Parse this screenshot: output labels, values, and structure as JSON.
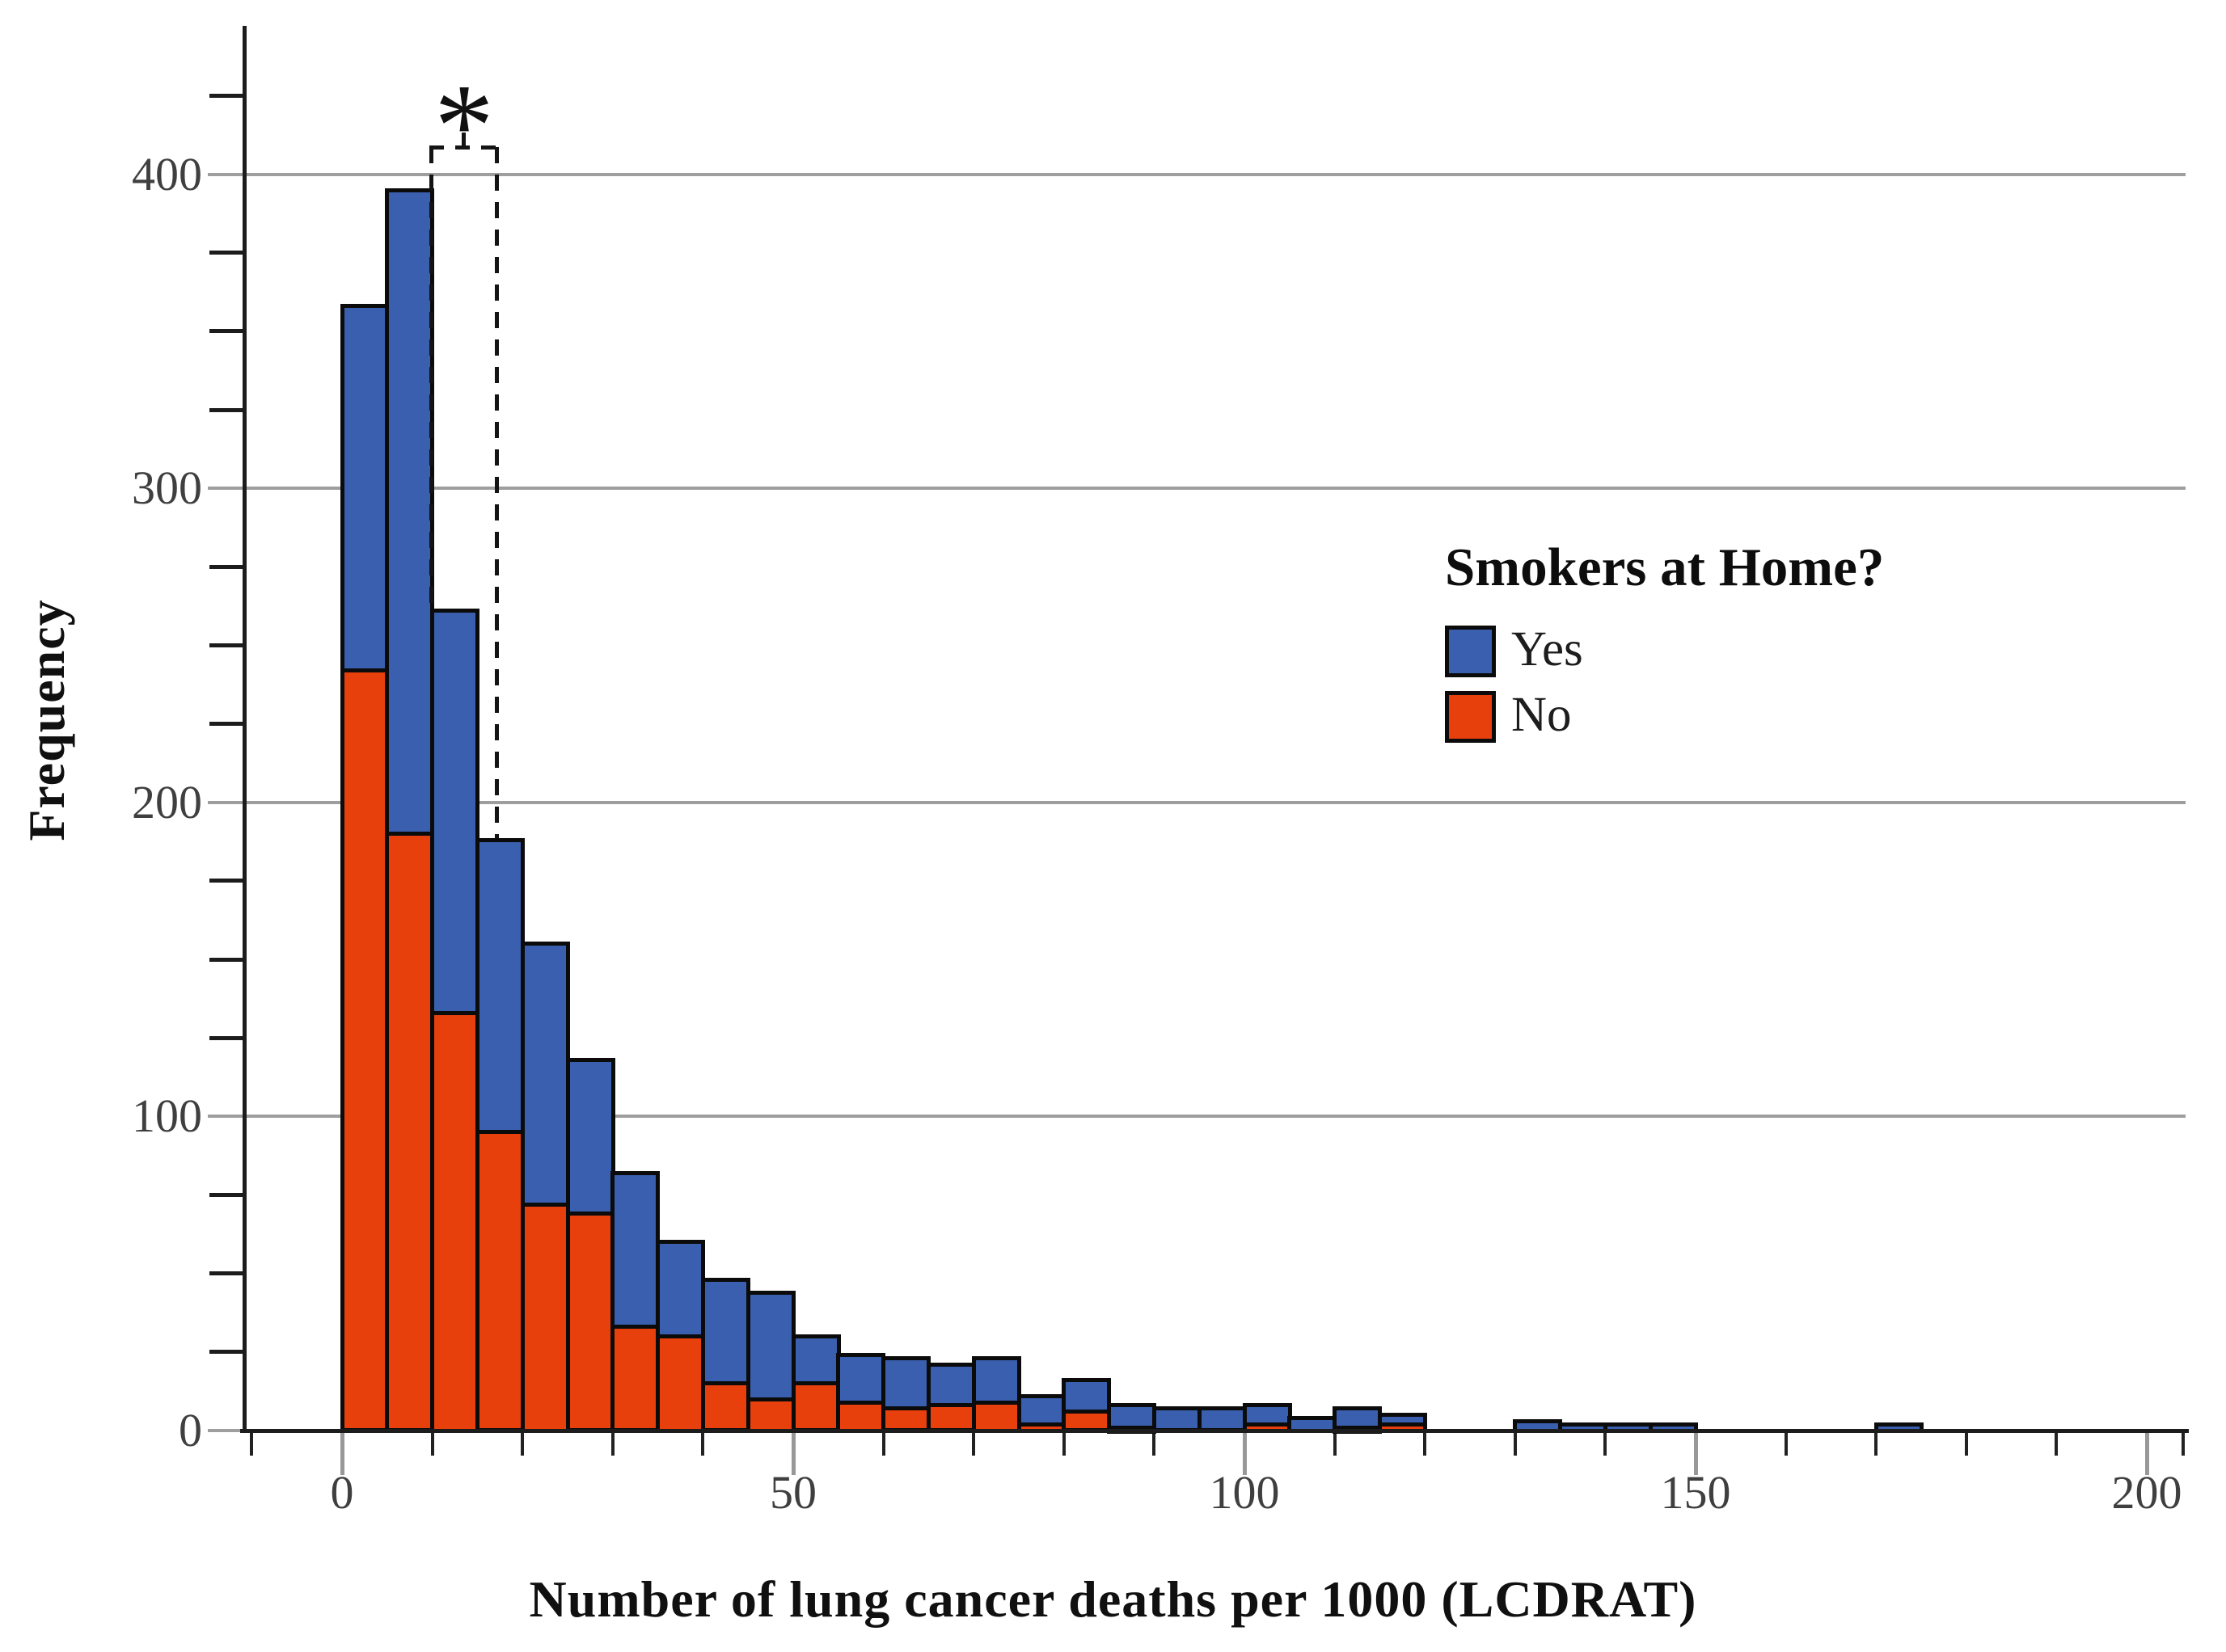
{
  "figure": {
    "x_axis_title": "Number of lung cancer deaths per 1000 (LCDRAT)",
    "y_axis_title": "Frequency"
  },
  "axes": {
    "x": {
      "tick_labels": [
        "0",
        "50",
        "100",
        "150",
        "200"
      ],
      "tick_values": [
        0,
        50,
        100,
        150,
        200
      ],
      "minor_tick_values": [
        -10,
        10,
        20,
        30,
        40,
        60,
        70,
        80,
        90,
        110,
        120,
        130,
        140,
        160,
        170,
        180,
        190,
        204
      ],
      "range": [
        -12,
        206
      ]
    },
    "y": {
      "tick_labels": [
        "0",
        "100",
        "200",
        "300",
        "400"
      ],
      "tick_values": [
        0,
        100,
        200,
        300,
        400
      ],
      "minor_tick_values": [
        25,
        50,
        75,
        125,
        150,
        175,
        225,
        250,
        275,
        325,
        350,
        375,
        425
      ],
      "range": [
        0,
        440
      ],
      "gridlines": "horizontal at major ticks"
    }
  },
  "legend": {
    "title": "Smokers at Home?",
    "items": [
      {
        "label": "Yes",
        "color": "#3A5FAE"
      },
      {
        "label": "No",
        "color": "#E8400D"
      }
    ]
  },
  "annotation": {
    "asterisk": "*",
    "note": "dashed empty rectangle between the 10-15 and 15-20 bars, topped with an asterisk"
  },
  "colors": {
    "yes_blue": "#3A5FAE",
    "no_red": "#E8400D",
    "bar_border": "#0b0b0b",
    "gridline_gray": "#9e9e9e",
    "axis_black": "#1c1c1c",
    "tick_label_gray": "#3f3f3f",
    "background": "#ffffff"
  },
  "chart_data": {
    "type": "bar",
    "subtype": "stacked histogram",
    "title": "",
    "xlabel": "Number of lung cancer deaths per 1000 (LCDRAT)",
    "ylabel": "Frequency",
    "bin_width": 5,
    "xlim": [
      -12,
      206
    ],
    "ylim": [
      0,
      440
    ],
    "grid": "horizontal major gridlines at 100,200,300,400",
    "legend_position": "upper right area of plot",
    "series_order_bottom_to_top": [
      "No",
      "Yes"
    ],
    "bins": [
      {
        "start": 0,
        "No": 242,
        "Yes": 116
      },
      {
        "start": 5,
        "No": 190,
        "Yes": 205
      },
      {
        "start": 10,
        "No": 133,
        "Yes": 128
      },
      {
        "start": 15,
        "No": 95,
        "Yes": 93
      },
      {
        "start": 20,
        "No": 72,
        "Yes": 83
      },
      {
        "start": 25,
        "No": 69,
        "Yes": 49
      },
      {
        "start": 30,
        "No": 33,
        "Yes": 49
      },
      {
        "start": 35,
        "No": 30,
        "Yes": 30
      },
      {
        "start": 40,
        "No": 15,
        "Yes": 33
      },
      {
        "start": 45,
        "No": 10,
        "Yes": 34
      },
      {
        "start": 50,
        "No": 15,
        "Yes": 15
      },
      {
        "start": 55,
        "No": 9,
        "Yes": 15
      },
      {
        "start": 60,
        "No": 7,
        "Yes": 16
      },
      {
        "start": 65,
        "No": 8,
        "Yes": 13
      },
      {
        "start": 70,
        "No": 9,
        "Yes": 14
      },
      {
        "start": 75,
        "No": 2,
        "Yes": 9
      },
      {
        "start": 80,
        "No": 6,
        "Yes": 10
      },
      {
        "start": 85,
        "No": 1,
        "Yes": 7
      },
      {
        "start": 90,
        "No": 0,
        "Yes": 7
      },
      {
        "start": 95,
        "No": 0,
        "Yes": 7
      },
      {
        "start": 100,
        "No": 2,
        "Yes": 6
      },
      {
        "start": 105,
        "No": 0,
        "Yes": 4
      },
      {
        "start": 110,
        "No": 1,
        "Yes": 6
      },
      {
        "start": 115,
        "No": 2,
        "Yes": 3
      },
      {
        "start": 120,
        "No": 0,
        "Yes": 0
      },
      {
        "start": 125,
        "No": 0,
        "Yes": 0
      },
      {
        "start": 130,
        "No": 0,
        "Yes": 3
      },
      {
        "start": 135,
        "No": 0,
        "Yes": 2
      },
      {
        "start": 140,
        "No": 0,
        "Yes": 2
      },
      {
        "start": 145,
        "No": 0,
        "Yes": 2
      },
      {
        "start": 150,
        "No": 0,
        "Yes": 0
      },
      {
        "start": 155,
        "No": 0,
        "Yes": 0
      },
      {
        "start": 160,
        "No": 0,
        "Yes": 0
      },
      {
        "start": 165,
        "No": 0,
        "Yes": 0
      },
      {
        "start": 170,
        "No": 0,
        "Yes": 2
      },
      {
        "start": 175,
        "No": 0,
        "Yes": 0
      },
      {
        "start": 180,
        "No": 0,
        "Yes": 0
      },
      {
        "start": 185,
        "No": 0,
        "Yes": 0
      },
      {
        "start": 190,
        "No": 0,
        "Yes": 0
      },
      {
        "start": 195,
        "No": 0,
        "Yes": 0
      }
    ]
  }
}
